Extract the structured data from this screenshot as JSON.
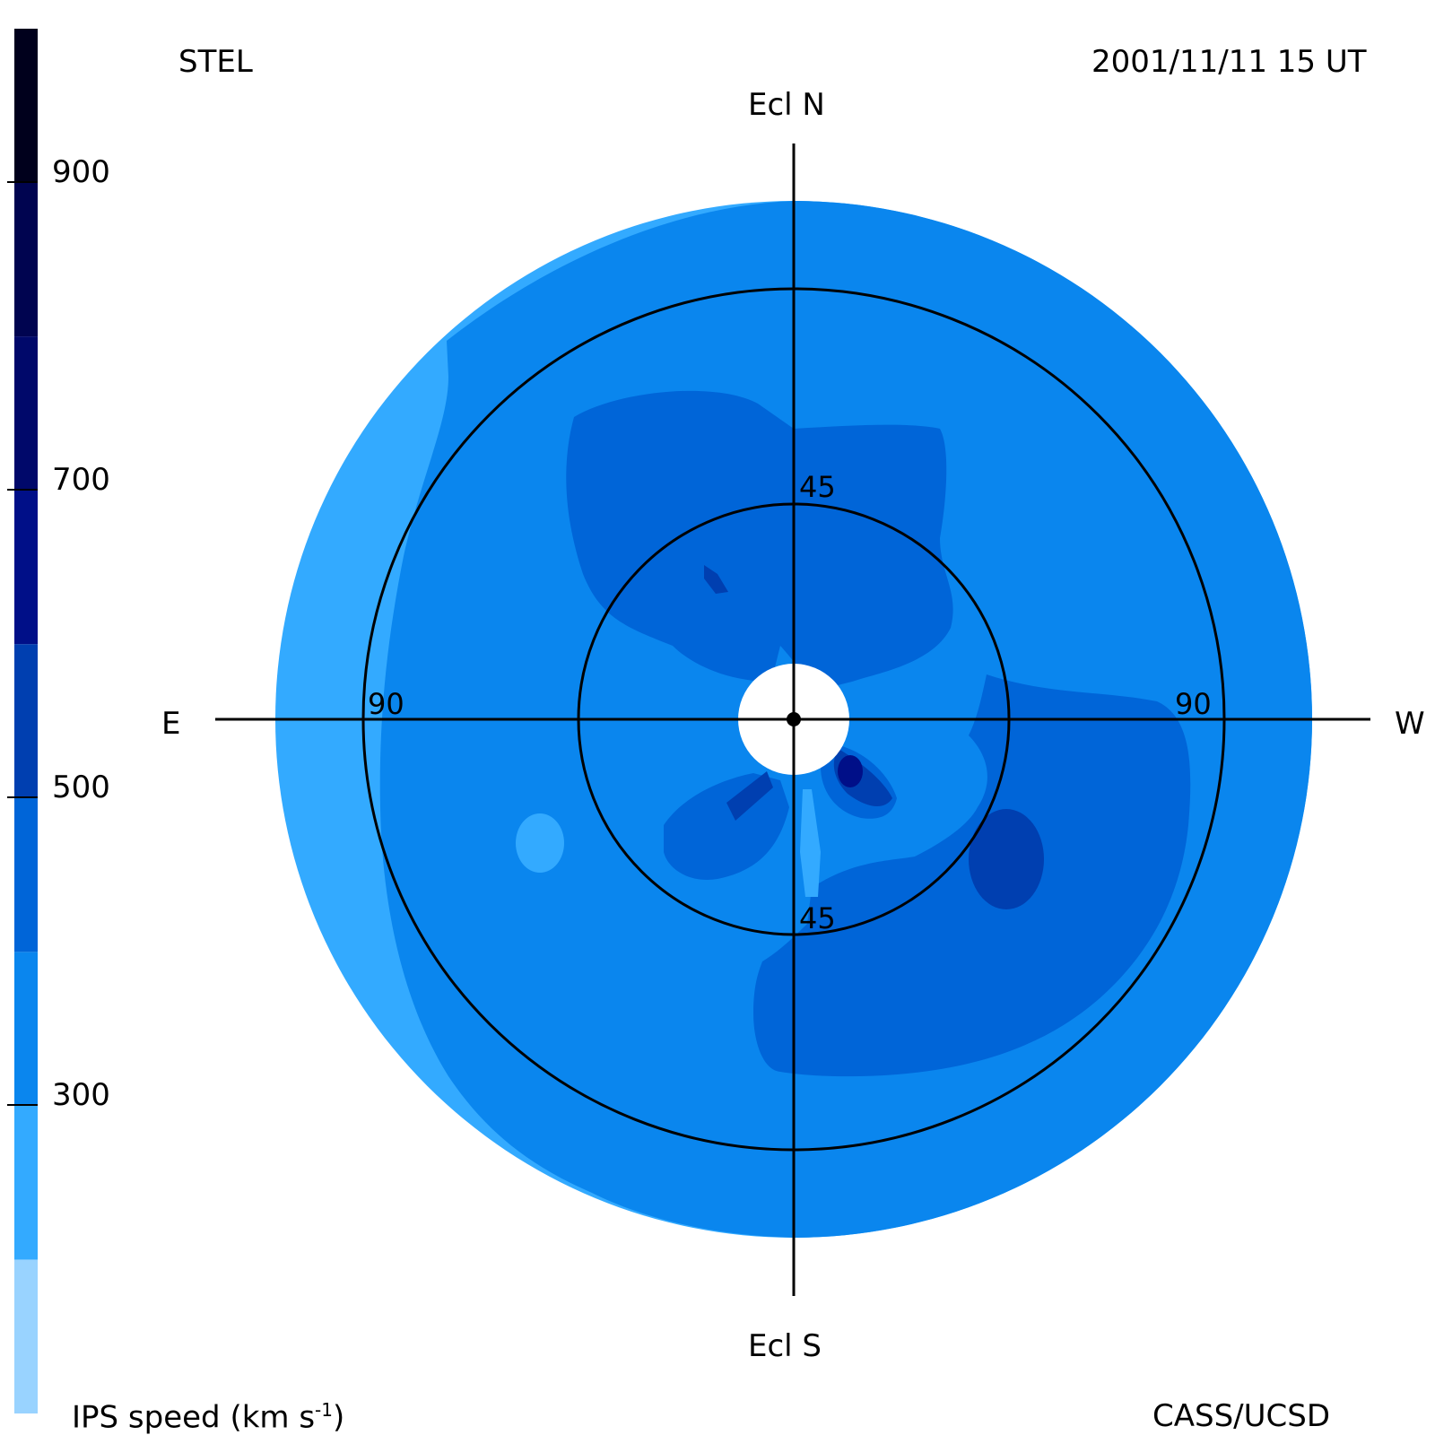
{
  "header": {
    "station": "STEL",
    "timestamp": "2001/11/11 15 UT"
  },
  "footer": {
    "colorbar_label": "IPS speed (km s",
    "colorbar_label_sup": "-1",
    "colorbar_label_end": ")",
    "credit": "CASS/UCSD"
  },
  "directions": {
    "north": "Ecl N",
    "south": "Ecl S",
    "east": "E",
    "west": "W"
  },
  "rings": {
    "inner_north": "45",
    "inner_south": "45",
    "outer_east": "90",
    "outer_west": "90"
  },
  "colorbar": {
    "min": 100,
    "max": 1000,
    "ticks": [
      "900",
      "700",
      "500",
      "300"
    ],
    "tick_values": [
      900,
      700,
      500,
      300
    ],
    "bands": [
      {
        "from": 100,
        "to": 200,
        "color": "#99d3ff"
      },
      {
        "from": 200,
        "to": 300,
        "color": "#33aaff"
      },
      {
        "from": 300,
        "to": 400,
        "color": "#0a86ee"
      },
      {
        "from": 400,
        "to": 500,
        "color": "#0065d8"
      },
      {
        "from": 500,
        "to": 600,
        "color": "#003fb0"
      },
      {
        "from": 600,
        "to": 700,
        "color": "#000f88"
      },
      {
        "from": 700,
        "to": 800,
        "color": "#00086a"
      },
      {
        "from": 800,
        "to": 900,
        "color": "#000450"
      },
      {
        "from": 900,
        "to": 1000,
        "color": "#00001c"
      }
    ]
  },
  "colors": {
    "c200": "#33aaff",
    "c300": "#0a86ee",
    "c400": "#0065d8",
    "c500": "#003fb0",
    "c600": "#000f88",
    "ink": "#000000"
  }
}
